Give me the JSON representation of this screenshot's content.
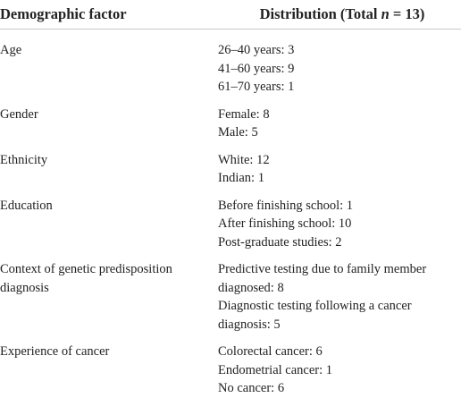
{
  "header": {
    "factor": "Demographic factor",
    "distribution_before": "Distribution (Total ",
    "distribution_italic": "n",
    "distribution_after": " = 13)"
  },
  "rows": [
    {
      "factor": "Age",
      "items": [
        "26–40 years: 3",
        "41–60 years: 9",
        "61–70 years: 1"
      ]
    },
    {
      "factor": "Gender",
      "items": [
        "Female: 8",
        "Male: 5"
      ]
    },
    {
      "factor": "Ethnicity",
      "items": [
        "White: 12",
        "Indian: 1"
      ]
    },
    {
      "factor": "Education",
      "items": [
        "Before finishing school: 1",
        "After finishing school: 10",
        "Post-graduate studies: 2"
      ]
    },
    {
      "factor": "Context of genetic predisposition diagnosis",
      "items": [
        "Predictive testing due to family member diagnosed: 8",
        "Diagnostic testing following a cancer diagnosis: 5"
      ]
    },
    {
      "factor": "Experience of cancer",
      "items": [
        "Colorectal cancer: 6",
        "Endometrial cancer: 1",
        "No cancer: 6"
      ]
    }
  ]
}
